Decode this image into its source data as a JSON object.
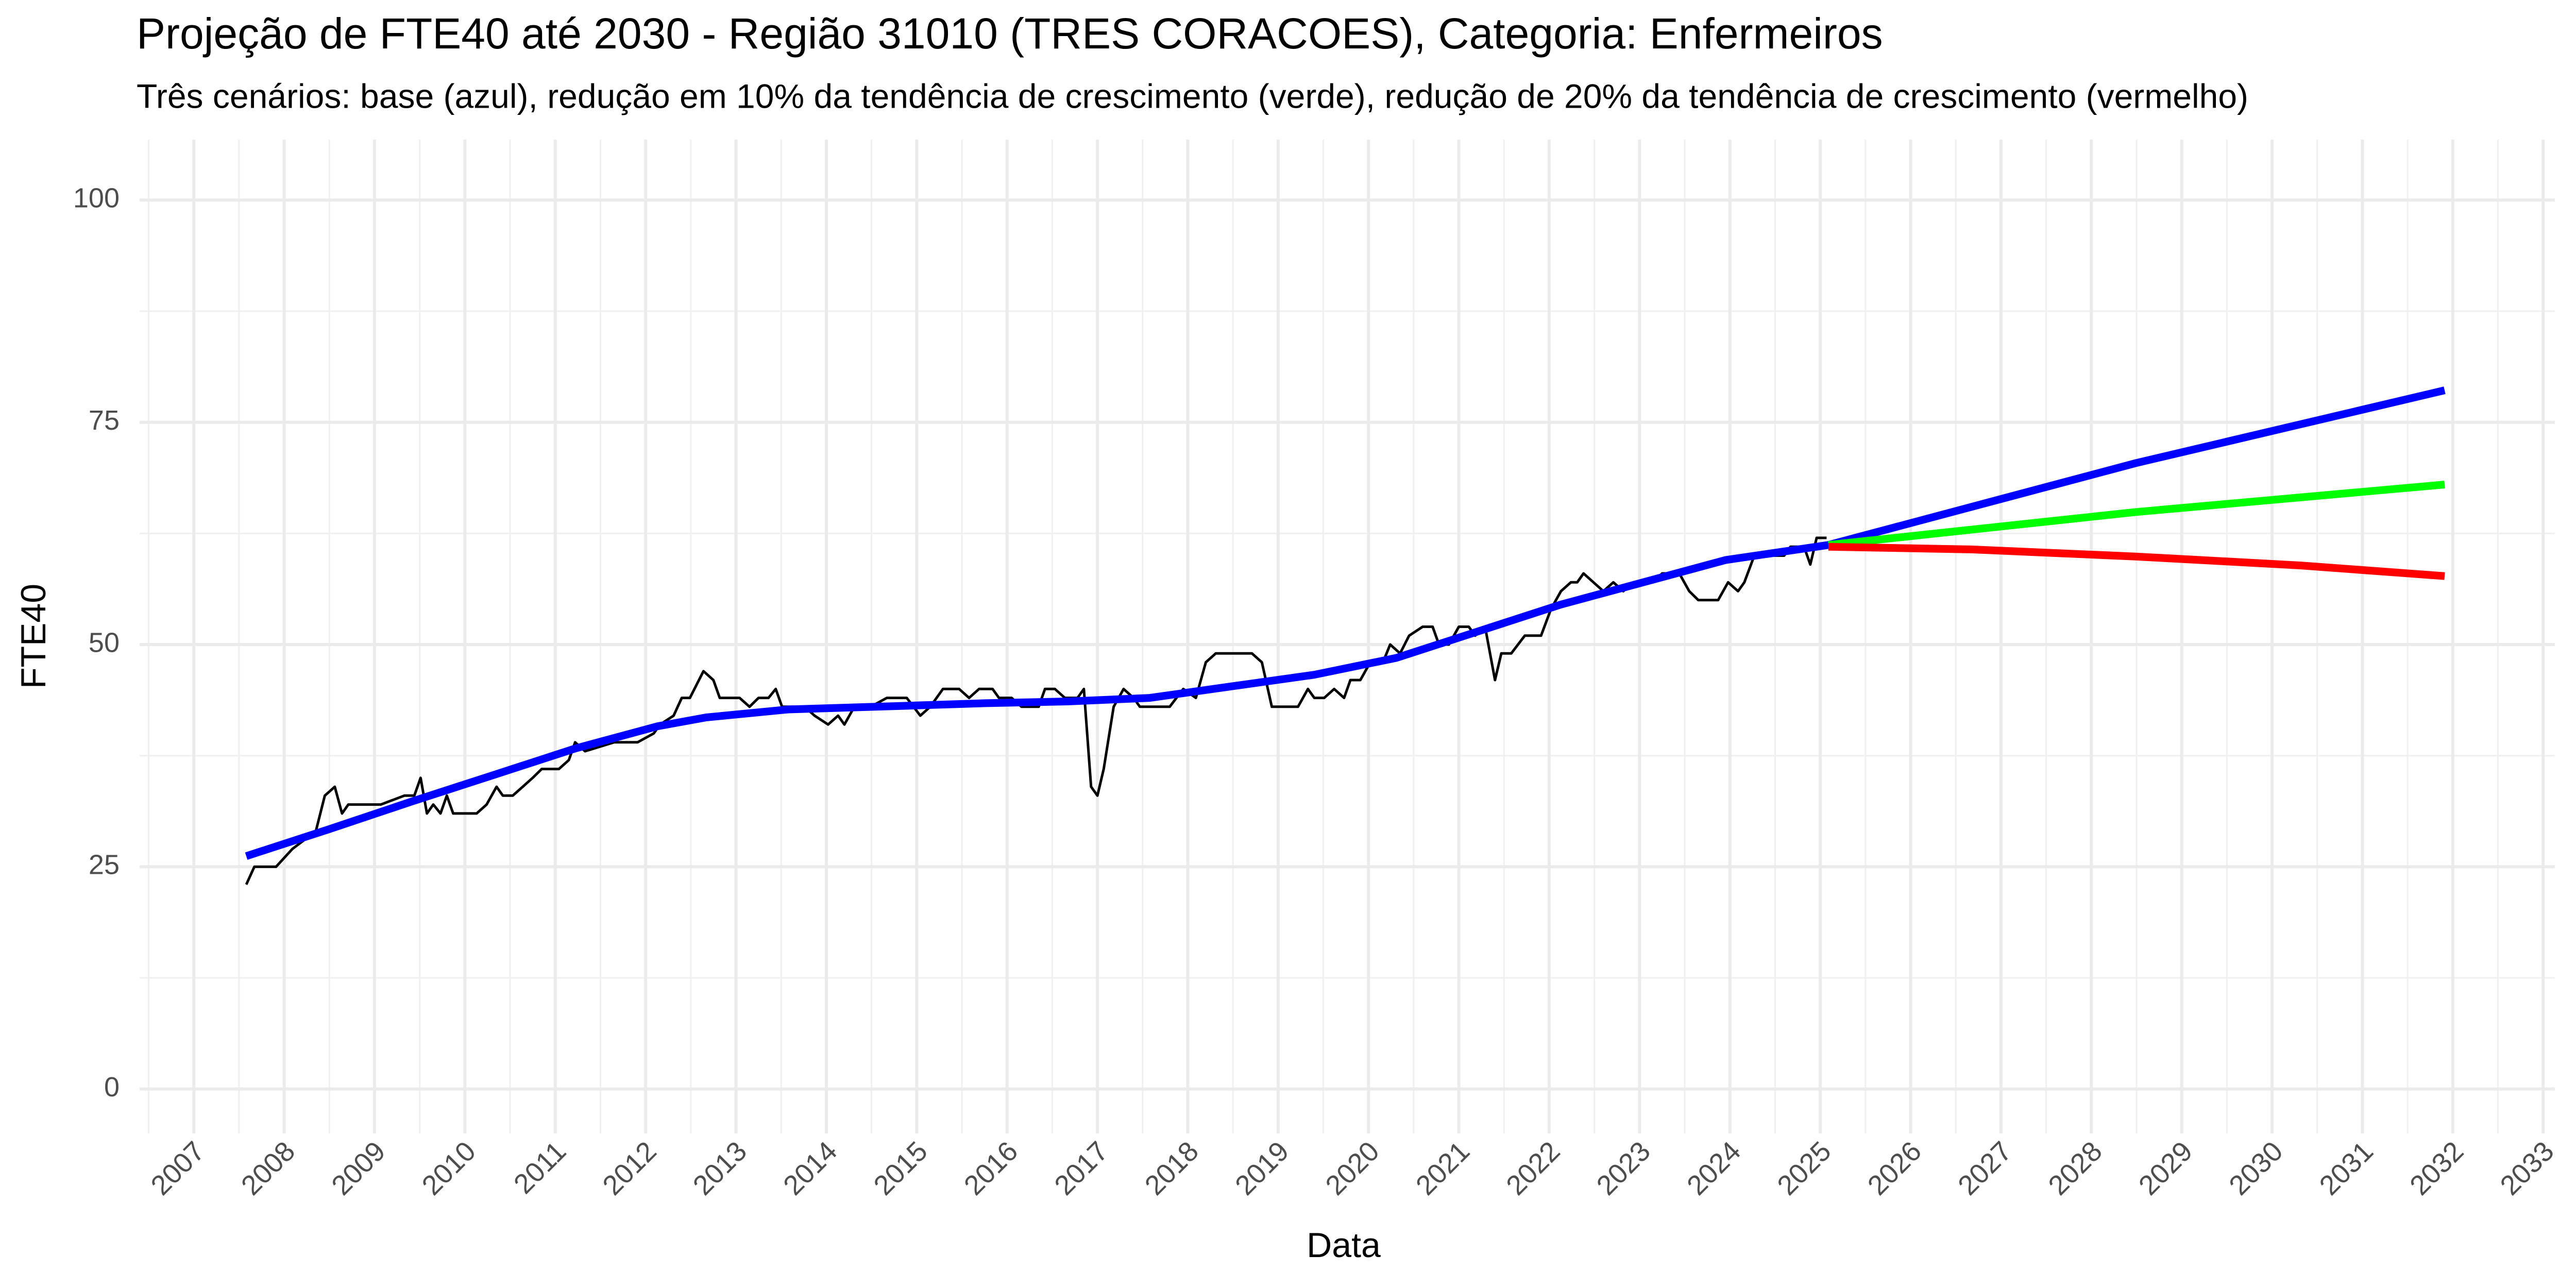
{
  "chart_data": {
    "type": "line",
    "title": "Projeção de FTE40 até 2030 - Região 31010 (TRES CORACOES), Categoria: Enfermeiros",
    "subtitle": "Três cenários: base (azul), redução em 10% da tendência de crescimento (verde), redução de 20% da tendência de crescimento (vermelho)",
    "x_label": "Data",
    "y_label": "FTE40",
    "xlim": [
      2006.4,
      2033.13
    ],
    "ylim": [
      -5,
      106.8
    ],
    "xticks": [
      2007,
      2008,
      2009,
      2010,
      2011,
      2012,
      2013,
      2014,
      2015,
      2016,
      2017,
      2018,
      2019,
      2020,
      2021,
      2022,
      2023,
      2024,
      2025,
      2026,
      2027,
      2028,
      2029,
      2030,
      2031,
      2032,
      2033
    ],
    "yticks": [
      0,
      25,
      50,
      75,
      100
    ],
    "grid": true,
    "series": [
      {
        "color": "#000000",
        "width": "thin",
        "x": [
          2007.58,
          2007.67,
          2007.91,
          2008.09,
          2008.22,
          2008.35,
          2008.45,
          2008.56,
          2008.64,
          2008.71,
          2009.07,
          2009.33,
          2009.44,
          2009.51,
          2009.58,
          2009.65,
          2009.73,
          2009.8,
          2009.87,
          2010.13,
          2010.24,
          2010.35,
          2010.42,
          2010.53,
          2010.64,
          2010.75,
          2010.85,
          2011.04,
          2011.15,
          2011.22,
          2011.33,
          2011.65,
          2011.91,
          2012.09,
          2012.16,
          2012.31,
          2012.4,
          2012.49,
          2012.64,
          2012.75,
          2012.82,
          2013.04,
          2013.15,
          2013.25,
          2013.36,
          2013.44,
          2013.51,
          2013.76,
          2013.87,
          2014.02,
          2014.13,
          2014.2,
          2014.31,
          2014.49,
          2014.67,
          2014.89,
          2015.04,
          2015.15,
          2015.29,
          2015.47,
          2015.58,
          2015.69,
          2015.84,
          2015.91,
          2016.05,
          2016.16,
          2016.35,
          2016.42,
          2016.53,
          2016.64,
          2016.78,
          2016.85,
          2016.93,
          2017.0,
          2017.07,
          2017.18,
          2017.29,
          2017.4,
          2017.47,
          2017.8,
          2017.95,
          2018.09,
          2018.2,
          2018.31,
          2018.71,
          2018.82,
          2018.93,
          2019.22,
          2019.33,
          2019.4,
          2019.51,
          2019.62,
          2019.73,
          2019.8,
          2019.91,
          2020.02,
          2020.16,
          2020.24,
          2020.35,
          2020.45,
          2020.6,
          2020.71,
          2020.78,
          2020.89,
          2021.0,
          2021.11,
          2021.18,
          2021.29,
          2021.4,
          2021.47,
          2021.58,
          2021.73,
          2021.91,
          2022.02,
          2022.13,
          2022.24,
          2022.31,
          2022.38,
          2022.49,
          2022.6,
          2022.71,
          2022.82,
          2022.93,
          2023.15,
          2023.25,
          2023.44,
          2023.55,
          2023.65,
          2023.87,
          2023.98,
          2024.09,
          2024.16,
          2024.27,
          2024.49,
          2024.6,
          2024.67,
          2024.82,
          2024.89,
          2024.96,
          2025.07
        ],
        "values": [
          23,
          25,
          25,
          27,
          28,
          29,
          33,
          34,
          31,
          32,
          32,
          33,
          33,
          35,
          31,
          32,
          31,
          33,
          31,
          31,
          32,
          34,
          33,
          33,
          34,
          35,
          36,
          36,
          37,
          39,
          38,
          39,
          39,
          40,
          41,
          42,
          44,
          44,
          47,
          46,
          44,
          44,
          43,
          44,
          44,
          45,
          43,
          43,
          42,
          41,
          42,
          41,
          43,
          43,
          44,
          44,
          42,
          43,
          45,
          45,
          44,
          45,
          45,
          44,
          44,
          43,
          43,
          45,
          45,
          44,
          44,
          45,
          34,
          33,
          36,
          43,
          45,
          44,
          43,
          43,
          45,
          44,
          48,
          49,
          49,
          48,
          43,
          43,
          45,
          44,
          44,
          45,
          44,
          46,
          46,
          48,
          48,
          50,
          49,
          51,
          52,
          52,
          50,
          50,
          52,
          52,
          51,
          52,
          46,
          49,
          49,
          51,
          51,
          54,
          56,
          57,
          57,
          58,
          57,
          56,
          57,
          56,
          57,
          57,
          58,
          58,
          56,
          55,
          55,
          57,
          56,
          57,
          60,
          60,
          60,
          61,
          61,
          59,
          62,
          62
        ]
      },
      {
        "color": "#0000ff",
        "width": "thick",
        "x": [
          2007.58,
          2008.49,
          2009.4,
          2010.31,
          2011.22,
          2012.13,
          2012.67,
          2013.58,
          2014.85,
          2015.76,
          2016.67,
          2017.58,
          2018.49,
          2019.4,
          2020.31,
          2021.22,
          2022.13,
          2023.04,
          2023.95,
          2025.09,
          2028.49,
          2031.91
        ],
        "values": [
          26.2,
          29.2,
          32.3,
          35.3,
          38.3,
          40.8,
          41.8,
          42.7,
          43.1,
          43.4,
          43.6,
          44,
          45.3,
          46.6,
          48.5,
          51.5,
          54.5,
          57,
          59.5,
          61.2,
          70.4,
          78.6
        ]
      },
      {
        "color": "#00ff00",
        "width": "thick",
        "x": [
          2025.09,
          2028.49,
          2031.91
        ],
        "values": [
          61.2,
          64.9,
          68.0
        ]
      },
      {
        "color": "#ff0000",
        "width": "thick",
        "x": [
          2025.09,
          2026.67,
          2028.49,
          2030.31,
          2031.91
        ],
        "values": [
          61.0,
          60.7,
          59.9,
          58.9,
          57.7
        ]
      }
    ]
  }
}
